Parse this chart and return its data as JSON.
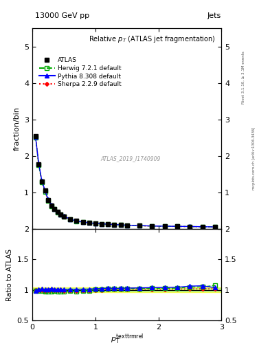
{
  "title": "13000 GeV pp",
  "right_label": "Jets",
  "plot_title": "Relative $p_{T}$ (ATLAS jet fragmentation)",
  "ylabel_main": "fraction/bin",
  "ylabel_ratio": "Ratio to ATLAS",
  "watermark": "ATLAS_2019_I1740909",
  "rivet_label": "Rivet 3.1.10, ≥ 3.1M events",
  "mcplots_label": "mcplots.cern.ch [arXiv:1306.3436]",
  "x_data": [
    0.05,
    0.1,
    0.15,
    0.2,
    0.25,
    0.3,
    0.35,
    0.4,
    0.45,
    0.5,
    0.6,
    0.7,
    0.8,
    0.9,
    1.0,
    1.1,
    1.2,
    1.3,
    1.4,
    1.5,
    1.7,
    1.9,
    2.1,
    2.3,
    2.5,
    2.7,
    2.9
  ],
  "atlas_y": [
    2.55,
    1.78,
    1.3,
    1.05,
    0.8,
    0.65,
    0.55,
    0.47,
    0.4,
    0.35,
    0.27,
    0.22,
    0.19,
    0.17,
    0.15,
    0.14,
    0.13,
    0.12,
    0.11,
    0.1,
    0.09,
    0.08,
    0.075,
    0.07,
    0.065,
    0.06,
    0.055
  ],
  "herwig_y": [
    2.5,
    1.75,
    1.28,
    1.02,
    0.78,
    0.63,
    0.54,
    0.46,
    0.39,
    0.34,
    0.265,
    0.215,
    0.187,
    0.168,
    0.151,
    0.141,
    0.132,
    0.122,
    0.112,
    0.102,
    0.092,
    0.082,
    0.077,
    0.072,
    0.068,
    0.063,
    0.059
  ],
  "pythia_y": [
    2.52,
    1.8,
    1.32,
    1.06,
    0.81,
    0.665,
    0.555,
    0.476,
    0.405,
    0.352,
    0.272,
    0.222,
    0.192,
    0.172,
    0.153,
    0.143,
    0.134,
    0.123,
    0.113,
    0.103,
    0.093,
    0.083,
    0.078,
    0.073,
    0.069,
    0.064,
    0.057
  ],
  "sherpa_y": [
    2.54,
    1.77,
    1.3,
    1.04,
    0.795,
    0.648,
    0.548,
    0.468,
    0.398,
    0.346,
    0.267,
    0.217,
    0.188,
    0.168,
    0.15,
    0.14,
    0.131,
    0.121,
    0.111,
    0.101,
    0.091,
    0.081,
    0.076,
    0.071,
    0.066,
    0.061,
    0.056
  ],
  "herwig_ratio": [
    0.98,
    0.983,
    0.985,
    0.971,
    0.975,
    0.969,
    0.982,
    0.979,
    0.975,
    0.971,
    0.981,
    0.977,
    0.984,
    0.988,
    1.007,
    1.007,
    1.015,
    1.017,
    1.018,
    1.02,
    1.022,
    1.025,
    1.027,
    1.029,
    1.046,
    1.05,
    1.073
  ],
  "pythia_ratio": [
    0.988,
    1.011,
    1.015,
    1.01,
    1.013,
    1.023,
    1.009,
    1.013,
    1.013,
    1.006,
    1.007,
    1.009,
    1.011,
    1.012,
    1.02,
    1.021,
    1.031,
    1.025,
    1.028,
    1.03,
    1.033,
    1.038,
    1.04,
    1.043,
    1.062,
    1.067,
    1.036
  ],
  "sherpa_ratio": [
    0.996,
    0.994,
    1.0,
    0.99,
    0.994,
    0.997,
    0.996,
    0.996,
    0.995,
    0.989,
    0.989,
    0.986,
    0.989,
    0.988,
    1.0,
    1.0,
    1.008,
    1.008,
    1.009,
    1.01,
    1.011,
    1.013,
    1.013,
    1.014,
    1.015,
    1.017,
    1.018
  ],
  "atlas_color": "black",
  "herwig_color": "#00aa00",
  "pythia_color": "blue",
  "sherpa_color": "red",
  "ylim_main": [
    0.0,
    5.5
  ],
  "ylim_ratio": [
    0.5,
    2.0
  ],
  "xlim": [
    0.0,
    3.0
  ],
  "background_color": "white"
}
